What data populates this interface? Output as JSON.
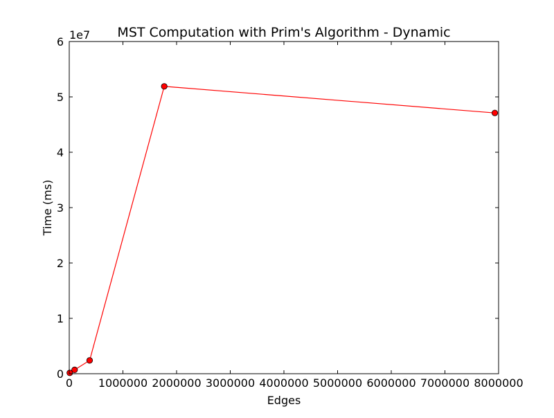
{
  "chart_data": {
    "type": "line",
    "title": "MST Computation with Prim's Algorithm - Dynamic",
    "xlabel": "Edges",
    "ylabel": "Time (ms)",
    "y_scale_label": "1e7",
    "xlim": [
      0,
      8000000
    ],
    "ylim": [
      0,
      60000000
    ],
    "x_ticks": [
      0,
      1000000,
      2000000,
      3000000,
      4000000,
      5000000,
      6000000,
      7000000,
      8000000
    ],
    "x_tick_labels": [
      "0",
      "1000000",
      "2000000",
      "3000000",
      "4000000",
      "5000000",
      "6000000",
      "7000000",
      "8000000"
    ],
    "y_ticks": [
      0,
      10000000,
      20000000,
      30000000,
      40000000,
      50000000,
      60000000
    ],
    "y_tick_labels": [
      "0",
      "1",
      "2",
      "3",
      "4",
      "5",
      "6"
    ],
    "grid": false,
    "series": [
      {
        "color": "#ff0000",
        "marker_color": "#ff0000",
        "x": [
          10000,
          100000,
          380000,
          1770000,
          7930000
        ],
        "y": [
          150000,
          700000,
          2400000,
          51900000,
          47100000
        ]
      }
    ]
  }
}
